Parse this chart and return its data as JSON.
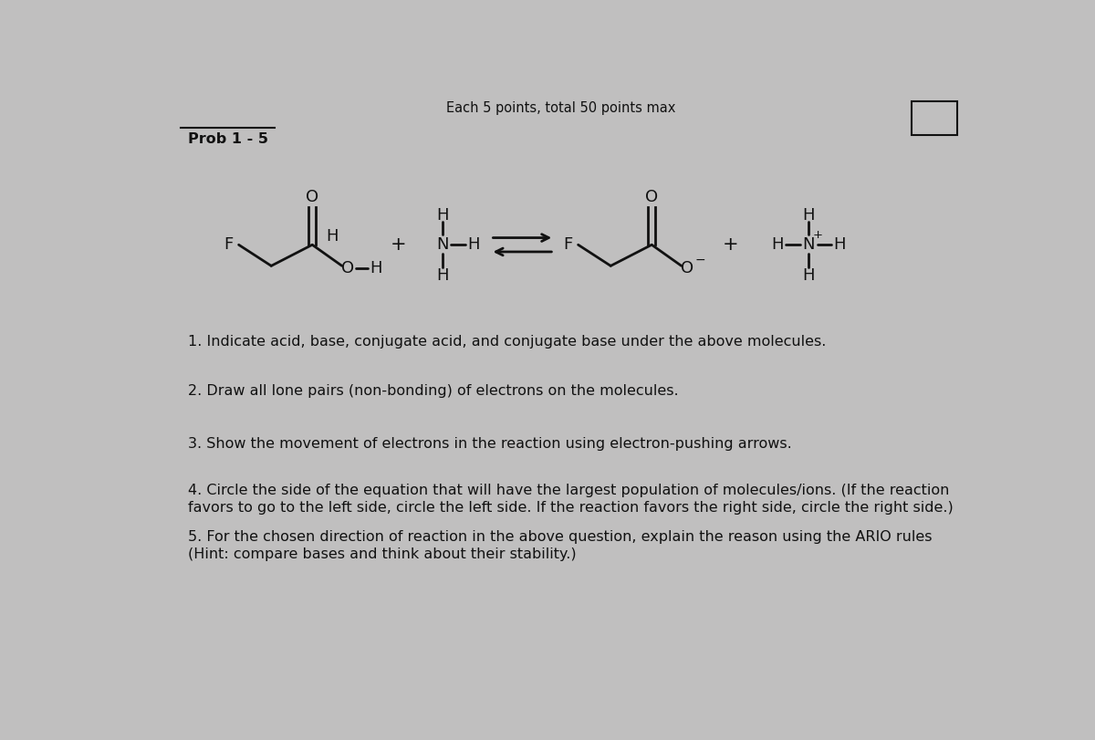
{
  "background_color": "#c0bfbf",
  "title_text": "Each 5 points, total 50 points max",
  "prob_text": "Prob 1 - 5",
  "question1": "1. Indicate acid, base, conjugate acid, and conjugate base under the above molecules.",
  "question2": "2. Draw all lone pairs (non-bonding) of electrons on the molecules.",
  "question3": "3. Show the movement of electrons in the reaction using electron-pushing arrows.",
  "question4a": "4. Circle the side of the equation that will have the largest population of molecules/ions. (If the reaction",
  "question4b": "favors to go to the left side, circle the left side. If the reaction favors the right side, circle the right side.)",
  "question5a": "5. For the chosen direction of reaction in the above question, explain the reason using the ARIO rules",
  "question5b": "(Hint: compare bases and think about their stability.)",
  "text_color": "#111111",
  "line_color": "#111111",
  "font_size_mol": 13,
  "font_size_body": 11.5
}
